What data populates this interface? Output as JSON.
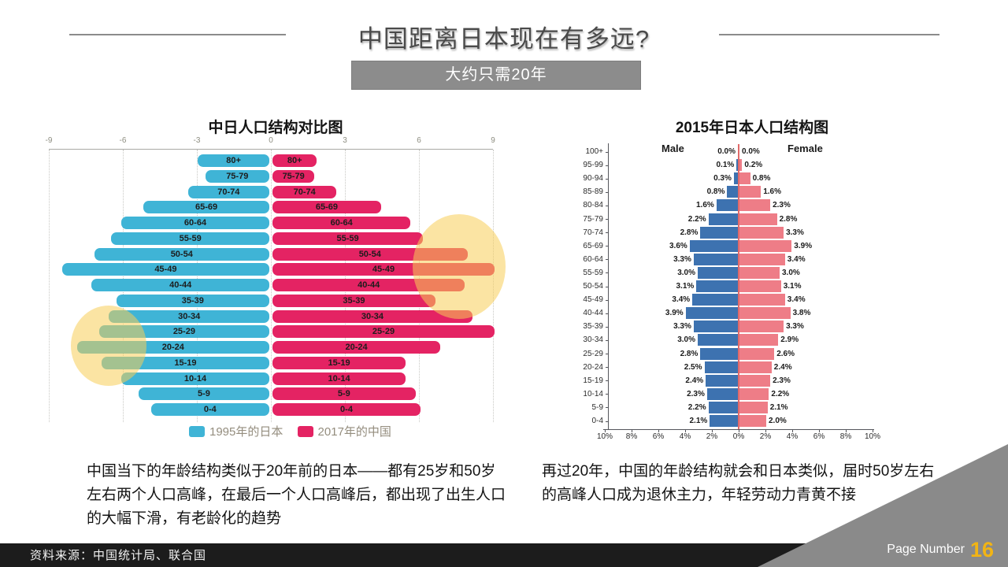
{
  "slide": {
    "title": "中国距离日本现在有多远?",
    "banner": "大约只需20年",
    "footer_source": "资料来源：中国统计局、联合国",
    "page_label": "Page Number",
    "page_number": "16"
  },
  "body_text": {
    "left": "中国当下的年龄结构类似于20年前的日本——都有25岁和50岁左右两个人口高峰，在最后一个人口高峰后，都出现了出生人口的大幅下滑，有老龄化的趋势",
    "right": "再过20年，中国的年龄结构就会和日本类似，届时50岁左右的高峰人口成为退休主力，年轻劳动力青黄不接"
  },
  "colors": {
    "japan1995_blue": "#3fb4d6",
    "china2017_pink": "#e42363",
    "male_blue": "#3d72b0",
    "female_pink": "#ee7d87",
    "highlight_yellow": "rgba(248,206,87,0.55)",
    "banner_gray": "#8c8c8c",
    "page_number_yellow": "#f2b414"
  },
  "chart_data": [
    {
      "type": "bar",
      "subtype": "population-pyramid",
      "title": "中日人口结构对比图",
      "axis_ticks": [
        -9,
        -6,
        -3,
        0,
        3,
        6,
        9
      ],
      "xlim": [
        -9,
        9
      ],
      "grid": "dotted-vertical",
      "legend_position": "bottom",
      "categories": [
        "80+",
        "75-79",
        "70-74",
        "65-69",
        "60-64",
        "55-59",
        "50-54",
        "45-49",
        "40-44",
        "35-39",
        "30-34",
        "25-29",
        "20-24",
        "15-19",
        "10-14",
        "5-9",
        "0-4"
      ],
      "series": [
        {
          "name": "1995年的日本",
          "side": "left",
          "color": "#3fb4d6",
          "values": [
            2.9,
            2.6,
            3.3,
            5.1,
            6.0,
            6.4,
            7.1,
            8.4,
            7.2,
            6.2,
            6.5,
            6.9,
            7.8,
            6.8,
            6.0,
            5.3,
            4.8
          ]
        },
        {
          "name": "2017年的中国",
          "side": "right",
          "color": "#e42363",
          "values": [
            1.8,
            1.7,
            2.6,
            4.4,
            5.6,
            6.1,
            7.9,
            9.0,
            7.8,
            6.6,
            8.1,
            9.0,
            6.8,
            5.4,
            5.4,
            5.8,
            6.0
          ]
        }
      ]
    },
    {
      "type": "bar",
      "subtype": "population-pyramid",
      "title": "2015年日本人口结构图",
      "male_label": "Male",
      "female_label": "Female",
      "x_ticks": [
        "10%",
        "8%",
        "6%",
        "4%",
        "2%",
        "0%",
        "2%",
        "4%",
        "6%",
        "8%",
        "10%"
      ],
      "xlim_pct": 10,
      "categories": [
        "100+",
        "95-99",
        "90-94",
        "85-89",
        "80-84",
        "75-79",
        "70-74",
        "65-69",
        "60-64",
        "55-59",
        "50-54",
        "45-49",
        "40-44",
        "35-39",
        "30-34",
        "25-29",
        "20-24",
        "15-19",
        "10-14",
        "5-9",
        "0-4"
      ],
      "series": [
        {
          "name": "Male",
          "side": "left",
          "color": "#3d72b0",
          "values_pct": [
            0.0,
            0.1,
            0.3,
            0.8,
            1.6,
            2.2,
            2.8,
            3.6,
            3.3,
            3.0,
            3.1,
            3.4,
            3.9,
            3.3,
            3.0,
            2.8,
            2.5,
            2.4,
            2.3,
            2.2,
            2.1
          ]
        },
        {
          "name": "Female",
          "side": "right",
          "color": "#ee7d87",
          "values_pct": [
            0.0,
            0.2,
            0.8,
            1.6,
            2.3,
            2.8,
            3.3,
            3.9,
            3.4,
            3.0,
            3.1,
            3.4,
            3.8,
            3.3,
            2.9,
            2.6,
            2.4,
            2.3,
            2.2,
            2.1,
            2.0
          ]
        }
      ]
    }
  ]
}
